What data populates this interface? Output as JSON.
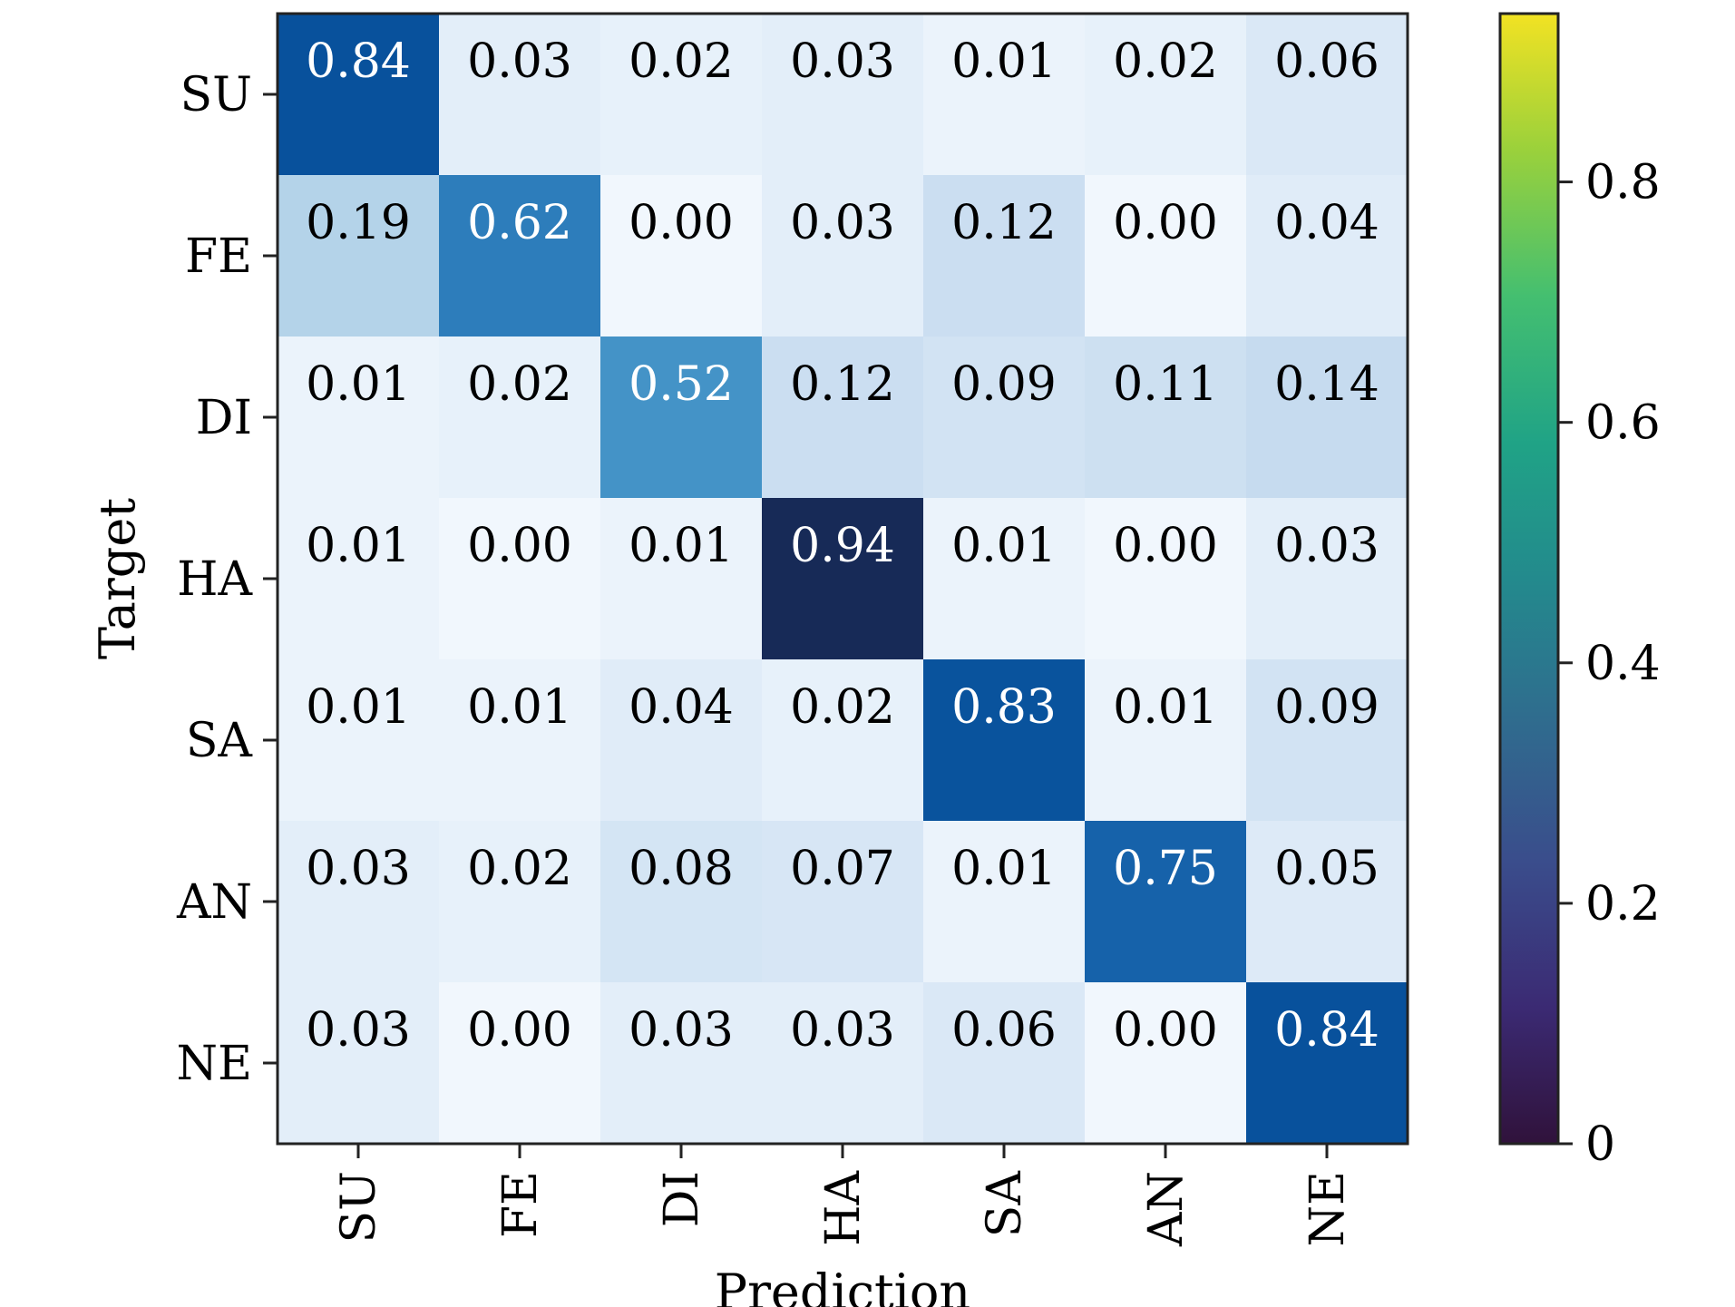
{
  "chart_data": {
    "type": "heatmap",
    "xlabel": "Prediction",
    "ylabel": "Target",
    "x_categories": [
      "SU",
      "FE",
      "DI",
      "HA",
      "SA",
      "AN",
      "NE"
    ],
    "y_categories": [
      "SU",
      "FE",
      "DI",
      "HA",
      "SA",
      "AN",
      "NE"
    ],
    "values": [
      [
        0.84,
        0.03,
        0.02,
        0.03,
        0.01,
        0.02,
        0.06
      ],
      [
        0.19,
        0.62,
        0.0,
        0.03,
        0.12,
        0.0,
        0.04
      ],
      [
        0.01,
        0.02,
        0.52,
        0.12,
        0.09,
        0.11,
        0.14
      ],
      [
        0.01,
        0.0,
        0.01,
        0.94,
        0.01,
        0.0,
        0.03
      ],
      [
        0.01,
        0.01,
        0.04,
        0.02,
        0.83,
        0.01,
        0.09
      ],
      [
        0.03,
        0.02,
        0.08,
        0.07,
        0.01,
        0.75,
        0.05
      ],
      [
        0.03,
        0.0,
        0.03,
        0.03,
        0.06,
        0.0,
        0.84
      ]
    ],
    "value_labels": [
      [
        "0.84",
        "0.03",
        "0.02",
        "0.03",
        "0.01",
        "0.02",
        "0.06"
      ],
      [
        "0.19",
        "0.62",
        "0.00",
        "0.03",
        "0.12",
        "0.00",
        "0.04"
      ],
      [
        "0.01",
        "0.02",
        "0.52",
        "0.12",
        "0.09",
        "0.11",
        "0.14"
      ],
      [
        "0.01",
        "0.00",
        "0.01",
        "0.94",
        "0.01",
        "0.00",
        "0.03"
      ],
      [
        "0.01",
        "0.01",
        "0.04",
        "0.02",
        "0.83",
        "0.01",
        "0.09"
      ],
      [
        "0.03",
        "0.02",
        "0.08",
        "0.07",
        "0.01",
        "0.75",
        "0.05"
      ],
      [
        "0.03",
        "0.00",
        "0.03",
        "0.03",
        "0.06",
        "0.00",
        "0.84"
      ]
    ],
    "cell_colormap": "Blues",
    "colorbar": {
      "colormap": "viridis",
      "range": [
        0,
        0.94
      ],
      "ticks": [
        0,
        0.2,
        0.4,
        0.6,
        0.8
      ],
      "tick_labels": [
        "0",
        "0.2",
        "0.4",
        "0.6",
        "0.8"
      ]
    },
    "grid": false
  }
}
